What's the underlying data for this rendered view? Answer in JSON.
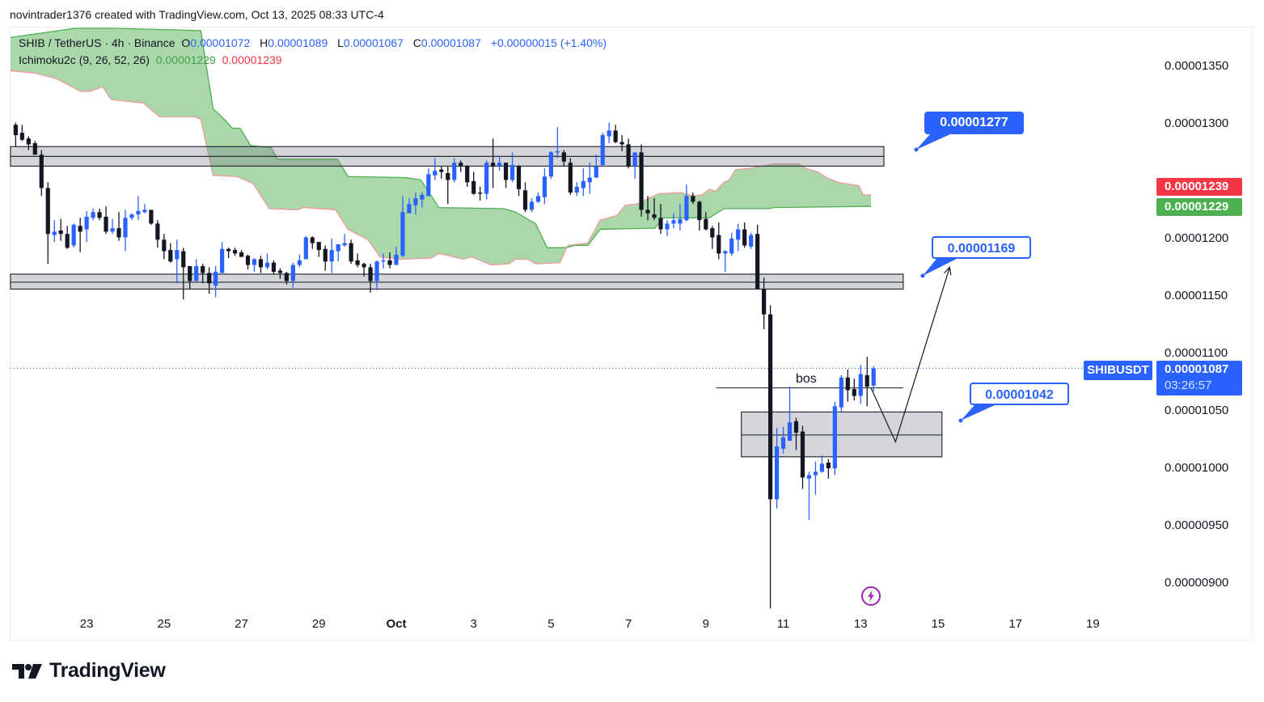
{
  "header": {
    "attribution": "novintrader1376 created with TradingView.com, Oct 13, 2025 08:33 UTC-4"
  },
  "legend": {
    "symbol": "SHIB / TetherUS · 4h · Binance",
    "o_label": "O",
    "o_value": "0.00001072",
    "h_label": "H",
    "h_value": "0.00001089",
    "l_label": "L",
    "l_value": "0.00001067",
    "c_label": "C",
    "c_value": "0.00001087",
    "change": "+0.00000015 (+1.40%)",
    "indicator": "Ichimoku2c (9, 26, 52, 26)",
    "indicator_value_a": "0.00001229",
    "indicator_value_b": "0.00001239"
  },
  "price_axis": {
    "ticks": [
      {
        "value": 1350,
        "label": "0.00001350"
      },
      {
        "value": 1300,
        "label": "0.00001300"
      },
      {
        "value": 1200,
        "label": "0.00001200"
      },
      {
        "value": 1150,
        "label": "0.00001150"
      },
      {
        "value": 1100,
        "label": "0.00001100"
      },
      {
        "value": 1050,
        "label": "0.00001050"
      },
      {
        "value": 1000,
        "label": "0.00001000"
      },
      {
        "value": 950,
        "label": "0.00000950"
      },
      {
        "value": 900,
        "label": "0.00000900"
      }
    ],
    "span_b_label": "0.00001239",
    "span_a_label": "0.00001229",
    "symbol_label": "SHIBUSDT",
    "current_price": "0.00001087",
    "countdown": "03:26:57"
  },
  "annotations": {
    "callout_1": "0.00001277",
    "callout_2": "0.00001169",
    "callout_3": "0.00001042",
    "bos_label": "bos"
  },
  "branding": {
    "logo_text": "TradingView"
  },
  "colors": {
    "up": "#2962ff",
    "down": "#131722",
    "cloud_fill": "#a5d6a7",
    "span_a": "#4caf50",
    "span_b": "#ef9a9a",
    "zone_fill": "rgba(120,123,134,0.32)",
    "accent": "#2962ff"
  },
  "chart_data": {
    "type": "candlestick",
    "title": "SHIB / TetherUS · 4h · Binance",
    "price_scale": 1e-08,
    "ylim": [
      874,
      1383
    ],
    "xlim": [
      -0.4,
      176
    ],
    "x_unit": "4h candle index",
    "xticks": [
      {
        "index": 11,
        "label": "23"
      },
      {
        "index": 23,
        "label": "25"
      },
      {
        "index": 35,
        "label": "27"
      },
      {
        "index": 47,
        "label": "29"
      },
      {
        "index": 59,
        "label": "Oct"
      },
      {
        "index": 71,
        "label": "3"
      },
      {
        "index": 83,
        "label": "5"
      },
      {
        "index": 95,
        "label": "7"
      },
      {
        "index": 107,
        "label": "9"
      },
      {
        "index": 119,
        "label": "11"
      },
      {
        "index": 131,
        "label": "13"
      },
      {
        "index": 143,
        "label": "15"
      },
      {
        "index": 155,
        "label": "17"
      },
      {
        "index": 167,
        "label": "19"
      }
    ],
    "ohlc": [
      [
        1299,
        1301,
        1280,
        1290
      ],
      [
        1292,
        1299,
        1285,
        1286
      ],
      [
        1287,
        1289,
        1277,
        1282
      ],
      [
        1283,
        1285,
        1273,
        1273
      ],
      [
        1273,
        1277,
        1237,
        1244
      ],
      [
        1244,
        1249,
        1178,
        1204
      ],
      [
        1203,
        1216,
        1197,
        1206
      ],
      [
        1207,
        1217,
        1198,
        1204
      ],
      [
        1204,
        1211,
        1191,
        1192
      ],
      [
        1194,
        1213,
        1192,
        1212
      ],
      [
        1211,
        1218,
        1188,
        1206
      ],
      [
        1208,
        1224,
        1197,
        1219
      ],
      [
        1218,
        1226,
        1216,
        1223
      ],
      [
        1223,
        1226,
        1216,
        1218
      ],
      [
        1219,
        1228,
        1204,
        1206
      ],
      [
        1206,
        1217,
        1204,
        1209
      ],
      [
        1209,
        1223,
        1198,
        1201
      ],
      [
        1201,
        1225,
        1189,
        1218
      ],
      [
        1218,
        1222,
        1216,
        1221
      ],
      [
        1221,
        1237,
        1216,
        1224
      ],
      [
        1223,
        1230,
        1222,
        1225
      ],
      [
        1225,
        1225,
        1212,
        1213
      ],
      [
        1213,
        1216,
        1192,
        1199
      ],
      [
        1199,
        1204,
        1182,
        1189
      ],
      [
        1190,
        1196,
        1179,
        1180
      ],
      [
        1182,
        1199,
        1161,
        1190
      ],
      [
        1189,
        1192,
        1147,
        1175
      ],
      [
        1176,
        1176,
        1156,
        1163
      ],
      [
        1163,
        1182,
        1163,
        1176
      ],
      [
        1176,
        1178,
        1161,
        1170
      ],
      [
        1170,
        1175,
        1152,
        1161
      ],
      [
        1159,
        1176,
        1149,
        1171
      ],
      [
        1170,
        1197,
        1170,
        1191
      ],
      [
        1191,
        1192,
        1183,
        1189
      ],
      [
        1190,
        1192,
        1185,
        1187
      ],
      [
        1188,
        1190,
        1184,
        1184
      ],
      [
        1185,
        1186,
        1173,
        1177
      ],
      [
        1177,
        1183,
        1171,
        1182
      ],
      [
        1182,
        1185,
        1170,
        1175
      ],
      [
        1175,
        1187,
        1173,
        1179
      ],
      [
        1179,
        1181,
        1169,
        1171
      ],
      [
        1172,
        1174,
        1165,
        1170
      ],
      [
        1170,
        1171,
        1160,
        1163
      ],
      [
        1163,
        1179,
        1157,
        1177
      ],
      [
        1177,
        1186,
        1175,
        1181
      ],
      [
        1182,
        1202,
        1182,
        1201
      ],
      [
        1201,
        1202,
        1191,
        1196
      ],
      [
        1197,
        1197,
        1184,
        1190
      ],
      [
        1191,
        1194,
        1172,
        1180
      ],
      [
        1180,
        1200,
        1170,
        1190
      ],
      [
        1189,
        1195,
        1180,
        1195
      ],
      [
        1194,
        1204,
        1193,
        1196
      ],
      [
        1196,
        1199,
        1178,
        1180
      ],
      [
        1181,
        1187,
        1175,
        1177
      ],
      [
        1178,
        1179,
        1167,
        1175
      ],
      [
        1175,
        1178,
        1153,
        1163
      ],
      [
        1163,
        1181,
        1155,
        1180
      ],
      [
        1180,
        1187,
        1174,
        1181
      ],
      [
        1181,
        1188,
        1174,
        1177
      ],
      [
        1177,
        1193,
        1177,
        1186
      ],
      [
        1185,
        1237,
        1184,
        1223
      ],
      [
        1222,
        1235,
        1222,
        1230
      ],
      [
        1229,
        1240,
        1221,
        1235
      ],
      [
        1234,
        1240,
        1227,
        1238
      ],
      [
        1237,
        1261,
        1237,
        1256
      ],
      [
        1255,
        1270,
        1251,
        1259
      ],
      [
        1260,
        1263,
        1252,
        1258
      ],
      [
        1257,
        1263,
        1230,
        1251
      ],
      [
        1251,
        1270,
        1249,
        1266
      ],
      [
        1266,
        1268,
        1258,
        1263
      ],
      [
        1263,
        1264,
        1245,
        1249
      ],
      [
        1250,
        1258,
        1238,
        1239
      ],
      [
        1240,
        1245,
        1233,
        1239
      ],
      [
        1239,
        1268,
        1234,
        1266
      ],
      [
        1266,
        1287,
        1244,
        1263
      ],
      [
        1263,
        1272,
        1259,
        1266
      ],
      [
        1266,
        1266,
        1244,
        1251
      ],
      [
        1251,
        1275,
        1249,
        1264
      ],
      [
        1263,
        1264,
        1237,
        1243
      ],
      [
        1242,
        1249,
        1223,
        1225
      ],
      [
        1225,
        1235,
        1223,
        1232
      ],
      [
        1232,
        1240,
        1231,
        1237
      ],
      [
        1236,
        1261,
        1230,
        1254
      ],
      [
        1254,
        1276,
        1252,
        1275
      ],
      [
        1275,
        1297,
        1270,
        1276
      ],
      [
        1275,
        1277,
        1263,
        1267
      ],
      [
        1266,
        1270,
        1238,
        1240
      ],
      [
        1240,
        1249,
        1237,
        1245
      ],
      [
        1244,
        1261,
        1237,
        1250
      ],
      [
        1249,
        1266,
        1239,
        1253
      ],
      [
        1253,
        1273,
        1253,
        1263
      ],
      [
        1264,
        1292,
        1263,
        1290
      ],
      [
        1289,
        1301,
        1283,
        1294
      ],
      [
        1294,
        1299,
        1283,
        1284
      ],
      [
        1284,
        1290,
        1276,
        1282
      ],
      [
        1282,
        1287,
        1261,
        1263
      ],
      [
        1263,
        1275,
        1252,
        1275
      ],
      [
        1275,
        1282,
        1219,
        1225
      ],
      [
        1225,
        1237,
        1216,
        1222
      ],
      [
        1221,
        1235,
        1216,
        1218
      ],
      [
        1218,
        1230,
        1204,
        1208
      ],
      [
        1208,
        1216,
        1202,
        1213
      ],
      [
        1213,
        1222,
        1209,
        1216
      ],
      [
        1213,
        1230,
        1207,
        1217
      ],
      [
        1216,
        1247,
        1215,
        1237
      ],
      [
        1237,
        1240,
        1230,
        1232
      ],
      [
        1232,
        1233,
        1207,
        1216
      ],
      [
        1217,
        1223,
        1207,
        1208
      ],
      [
        1209,
        1211,
        1191,
        1201
      ],
      [
        1203,
        1214,
        1182,
        1187
      ],
      [
        1187,
        1190,
        1171,
        1189
      ],
      [
        1187,
        1205,
        1185,
        1200
      ],
      [
        1199,
        1213,
        1189,
        1208
      ],
      [
        1208,
        1214,
        1192,
        1194
      ],
      [
        1193,
        1205,
        1191,
        1203
      ],
      [
        1204,
        1212,
        1156,
        1156
      ],
      [
        1156,
        1166,
        1121,
        1134
      ],
      [
        1134,
        1142,
        878,
        973
      ],
      [
        973,
        1035,
        965,
        1019
      ],
      [
        1017,
        1036,
        1013,
        1027
      ],
      [
        1024,
        1071,
        1024,
        1040
      ],
      [
        1041,
        1044,
        1016,
        1031
      ],
      [
        1032,
        1037,
        982,
        992
      ],
      [
        991,
        997,
        955,
        994
      ],
      [
        994,
        1006,
        977,
        997
      ],
      [
        997,
        1011,
        996,
        1004
      ],
      [
        1005,
        1008,
        991,
        1000
      ],
      [
        1000,
        1058,
        994,
        1054
      ],
      [
        1053,
        1081,
        1049,
        1079
      ],
      [
        1079,
        1086,
        1058,
        1068
      ],
      [
        1069,
        1078,
        1059,
        1063
      ],
      [
        1063,
        1090,
        1056,
        1082
      ],
      [
        1081,
        1097,
        1054,
        1071
      ],
      [
        1072,
        1089,
        1067,
        1087
      ]
    ],
    "ichimoku": {
      "span_a": [
        [
          -0.4,
          1375
        ],
        [
          9.6,
          1383
        ],
        [
          15.9,
          1383
        ],
        [
          29.1,
          1381
        ],
        [
          31.0,
          1313
        ],
        [
          32.7,
          1304
        ],
        [
          34.0,
          1296
        ],
        [
          35.2,
          1296
        ],
        [
          36.8,
          1281
        ],
        [
          40.0,
          1279
        ],
        [
          41.0,
          1269
        ],
        [
          50.3,
          1269
        ],
        [
          51.9,
          1254
        ],
        [
          61.0,
          1253
        ],
        [
          63.2,
          1251
        ],
        [
          66.0,
          1227
        ],
        [
          76.1,
          1226
        ],
        [
          77.9,
          1223
        ],
        [
          79.4,
          1218
        ],
        [
          81.0,
          1213
        ],
        [
          82.8,
          1192
        ],
        [
          85.7,
          1192
        ],
        [
          87.0,
          1194
        ],
        [
          89.1,
          1194
        ],
        [
          91.0,
          1208
        ],
        [
          99.5,
          1209
        ],
        [
          100.8,
          1218
        ],
        [
          107.9,
          1218
        ],
        [
          110.2,
          1226
        ],
        [
          117.0,
          1226
        ],
        [
          118.0,
          1227
        ],
        [
          133.0,
          1228
        ]
      ],
      "span_b": [
        [
          -0.4,
          1346
        ],
        [
          3.4,
          1344
        ],
        [
          6.8,
          1339
        ],
        [
          10.5,
          1328
        ],
        [
          11.8,
          1328
        ],
        [
          13.9,
          1332
        ],
        [
          15.2,
          1321
        ],
        [
          20.2,
          1318
        ],
        [
          22.7,
          1306
        ],
        [
          28.1,
          1306
        ],
        [
          29.1,
          1304
        ],
        [
          31.0,
          1255
        ],
        [
          34.7,
          1254
        ],
        [
          37.2,
          1248
        ],
        [
          39.7,
          1226
        ],
        [
          44.0,
          1225
        ],
        [
          45.0,
          1227
        ],
        [
          50.0,
          1225
        ],
        [
          51.9,
          1208
        ],
        [
          55.0,
          1199
        ],
        [
          56.9,
          1184
        ],
        [
          59.8,
          1182
        ],
        [
          64.8,
          1183
        ],
        [
          66.0,
          1187
        ],
        [
          69.8,
          1182
        ],
        [
          71.1,
          1184
        ],
        [
          74.1,
          1177
        ],
        [
          76.9,
          1178
        ],
        [
          77.9,
          1182
        ],
        [
          79.8,
          1182
        ],
        [
          81.0,
          1178
        ],
        [
          84.8,
          1179
        ],
        [
          86.0,
          1194
        ],
        [
          89.1,
          1196
        ],
        [
          91.0,
          1216
        ],
        [
          93.6,
          1220
        ],
        [
          94.9,
          1229
        ],
        [
          96.7,
          1230
        ],
        [
          100.1,
          1239
        ],
        [
          103.6,
          1240
        ],
        [
          105.4,
          1237
        ],
        [
          106.8,
          1238
        ],
        [
          108.0,
          1243
        ],
        [
          108.9,
          1241
        ],
        [
          110.2,
          1249
        ],
        [
          111.0,
          1251
        ],
        [
          112.0,
          1260
        ],
        [
          114.2,
          1261
        ],
        [
          117.9,
          1265
        ],
        [
          121.8,
          1265
        ],
        [
          122.9,
          1261
        ],
        [
          124.8,
          1258
        ],
        [
          126.1,
          1253
        ],
        [
          127.9,
          1249
        ],
        [
          129.8,
          1247
        ],
        [
          131.1,
          1246
        ],
        [
          131.8,
          1238
        ],
        [
          133.0,
          1238
        ]
      ]
    },
    "zones": [
      {
        "from_index": -0.4,
        "to_index": 135.0,
        "top": 1280,
        "bottom": 1263,
        "mid": 1271.5
      },
      {
        "from_index": -0.4,
        "to_index": 138.0,
        "top": 1169,
        "bottom": 1156,
        "mid": 1162
      },
      {
        "from_index": 112.9,
        "to_index": 144.0,
        "top": 1049,
        "bottom": 1010,
        "mid": 1029
      }
    ],
    "bos_line": {
      "from_index": 109,
      "to_index": 138,
      "price": 1070
    },
    "projection_path": [
      [
        133,
        1070
      ],
      [
        136.8,
        1023
      ],
      [
        145.2,
        1175
      ]
    ],
    "current_price": 1087
  }
}
